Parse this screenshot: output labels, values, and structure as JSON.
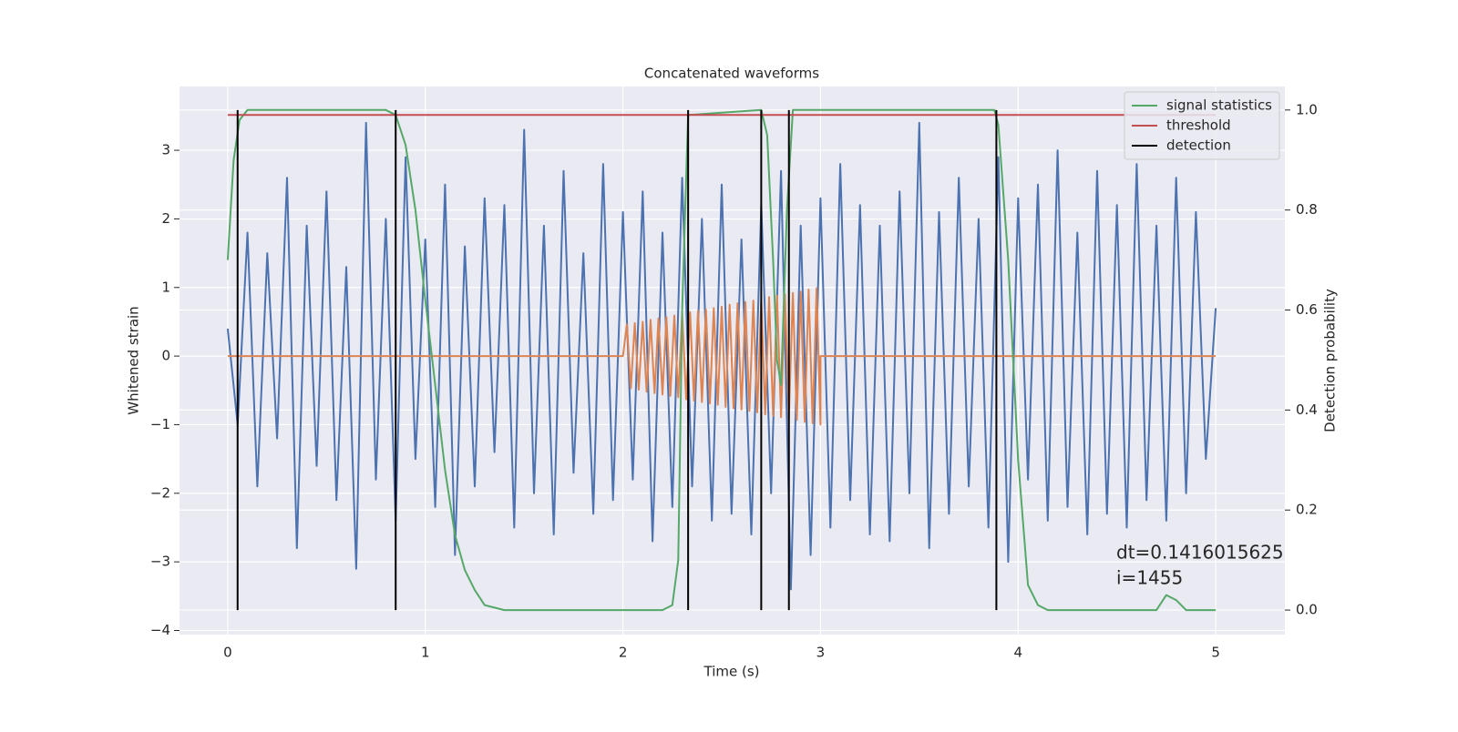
{
  "chart_data": {
    "type": "line",
    "title": "Concatenated waveforms",
    "xlabel": "Time (s)",
    "ylabel": "Whitened strain",
    "y2label": "Detection probability",
    "xlim": [
      -0.244,
      5.35
    ],
    "ylim": [
      -4.06,
      3.93
    ],
    "y2lim": [
      -0.049,
      1.047
    ],
    "xticks": [
      0,
      1,
      2,
      3,
      4,
      5
    ],
    "yticks": [
      {
        "value": -4,
        "label": "−4"
      },
      {
        "value": -3,
        "label": "−3"
      },
      {
        "value": -2,
        "label": "−2"
      },
      {
        "value": -1,
        "label": "−1"
      },
      0,
      1,
      2,
      3
    ],
    "y2ticks": [
      {
        "value": 0,
        "label": "0.0"
      },
      0.2,
      0.4,
      0.6,
      0.8,
      {
        "value": 1,
        "label": "1.0"
      }
    ],
    "grid": true,
    "legend": "upper right",
    "annotation": [
      "dt=0.1416015625",
      " i=1455"
    ],
    "series": [
      {
        "color": "#4c72b0",
        "x": [
          0,
          0.05,
          0.1,
          0.15,
          0.2,
          0.25,
          0.3,
          0.35,
          0.4,
          0.45,
          0.5,
          0.55,
          0.6,
          0.65,
          0.7,
          0.75,
          0.8,
          0.85,
          0.9,
          0.95,
          1,
          1.05,
          1.1,
          1.15,
          1.2,
          1.25,
          1.3,
          1.35,
          1.4,
          1.45,
          1.5,
          1.55,
          1.6,
          1.65,
          1.7,
          1.75,
          1.8,
          1.85,
          1.9,
          1.95,
          2,
          2.05,
          2.1,
          2.15,
          2.2,
          2.25,
          2.3,
          2.35,
          2.4,
          2.45,
          2.5,
          2.55,
          2.6,
          2.65,
          2.7,
          2.75,
          2.8,
          2.85,
          2.9,
          2.95,
          3,
          3.05,
          3.1,
          3.15,
          3.2,
          3.25,
          3.3,
          3.35,
          3.4,
          3.45,
          3.5,
          3.55,
          3.6,
          3.65,
          3.7,
          3.75,
          3.8,
          3.85,
          3.9,
          3.95,
          4,
          4.05,
          4.1,
          4.15,
          4.2,
          4.25,
          4.3,
          4.35,
          4.4,
          4.45,
          4.5,
          4.55,
          4.6,
          4.65,
          4.7,
          4.75,
          4.8,
          4.85,
          4.9,
          4.95,
          5
        ],
        "values": [
          0.4,
          -1.0,
          1.8,
          -1.9,
          1.5,
          -1.2,
          2.6,
          -2.8,
          1.9,
          -1.6,
          2.4,
          -2.1,
          1.3,
          -3.1,
          3.4,
          -1.8,
          2.0,
          -2.4,
          2.9,
          -1.5,
          1.7,
          -2.2,
          2.5,
          -2.9,
          1.6,
          -1.9,
          2.3,
          -1.4,
          2.2,
          -2.5,
          3.3,
          -2.0,
          1.9,
          -2.6,
          2.7,
          -1.7,
          1.5,
          -2.3,
          2.8,
          -2.1,
          2.1,
          -1.8,
          2.4,
          -2.7,
          1.8,
          -2.2,
          2.6,
          -1.9,
          2.0,
          -2.4,
          2.5,
          -2.3,
          1.7,
          -2.6,
          2.2,
          -2.0,
          2.7,
          -3.4,
          1.9,
          -2.9,
          2.3,
          -2.5,
          2.8,
          -2.1,
          2.2,
          -2.6,
          1.9,
          -2.7,
          2.4,
          -2.0,
          3.4,
          -2.8,
          2.1,
          -2.3,
          2.6,
          -1.9,
          2.0,
          -2.5,
          2.9,
          -3.0,
          2.3,
          -1.8,
          2.5,
          -2.4,
          3.0,
          -2.2,
          1.8,
          -2.6,
          2.7,
          -2.3,
          2.2,
          -2.5,
          2.8,
          -2.1,
          1.9,
          -2.4,
          2.6,
          -2.0,
          2.1,
          -1.5,
          0.7
        ]
      },
      {
        "color": "#dd8452",
        "x": [
          0,
          2,
          2.02,
          2.04,
          2.06,
          2.08,
          2.1,
          2.12,
          2.14,
          2.16,
          2.18,
          2.2,
          2.22,
          2.24,
          2.26,
          2.28,
          2.3,
          2.32,
          2.34,
          2.36,
          2.38,
          2.4,
          2.42,
          2.44,
          2.46,
          2.48,
          2.5,
          2.52,
          2.54,
          2.56,
          2.58,
          2.6,
          2.62,
          2.64,
          2.66,
          2.68,
          2.7,
          2.72,
          2.74,
          2.76,
          2.78,
          2.8,
          2.82,
          2.84,
          2.86,
          2.88,
          2.9,
          2.92,
          2.94,
          2.96,
          2.98,
          3,
          3,
          5
        ],
        "values": [
          0,
          0,
          0.46,
          -0.47,
          0.48,
          -0.49,
          0.5,
          -0.52,
          0.53,
          -0.54,
          0.55,
          -0.56,
          0.57,
          -0.58,
          0.59,
          -0.6,
          0.62,
          -0.63,
          0.64,
          -0.65,
          0.66,
          -0.67,
          0.68,
          -0.69,
          0.7,
          -0.71,
          0.72,
          -0.74,
          0.75,
          -0.76,
          0.77,
          -0.78,
          0.79,
          -0.8,
          0.81,
          -0.82,
          0.83,
          -0.85,
          0.86,
          -0.87,
          0.88,
          -0.89,
          0.9,
          -0.91,
          0.92,
          -0.93,
          0.94,
          -0.96,
          0.97,
          -0.98,
          0.99,
          -1.0,
          0,
          0
        ]
      },
      {
        "name": "signal statistics",
        "color": "#55a868",
        "axis": "y2",
        "x": [
          0,
          0.03,
          0.06,
          0.1,
          0.8,
          0.85,
          0.9,
          0.95,
          1.0,
          1.05,
          1.1,
          1.15,
          1.2,
          1.25,
          1.3,
          1.4,
          2.2,
          2.25,
          2.28,
          2.3,
          2.33,
          2.7,
          2.73,
          2.76,
          2.78,
          2.8,
          2.83,
          2.86,
          3.88,
          3.9,
          3.95,
          4.0,
          4.05,
          4.1,
          4.15,
          4.7,
          4.75,
          4.8,
          4.85,
          5.0
        ],
        "values": [
          0.7,
          0.9,
          0.98,
          1.0,
          1.0,
          0.99,
          0.93,
          0.8,
          0.62,
          0.45,
          0.28,
          0.15,
          0.08,
          0.04,
          0.01,
          0.0,
          0.0,
          0.01,
          0.1,
          0.6,
          0.99,
          1.0,
          0.95,
          0.7,
          0.5,
          0.45,
          0.8,
          1.0,
          1.0,
          0.97,
          0.7,
          0.3,
          0.05,
          0.01,
          0.0,
          0.0,
          0.03,
          0.02,
          0.0,
          0.0
        ]
      },
      {
        "name": "threshold",
        "color": "#c44e52",
        "axis": "y2",
        "x": [
          0,
          5
        ],
        "values": [
          0.99,
          0.99
        ]
      },
      {
        "name": "detection",
        "color": "#000000",
        "axis": "y2",
        "type": "vlines",
        "x": [
          0.05,
          0.85,
          2.33,
          2.7,
          2.84,
          3.89
        ],
        "ymin": 0,
        "ymax": 1
      }
    ]
  }
}
